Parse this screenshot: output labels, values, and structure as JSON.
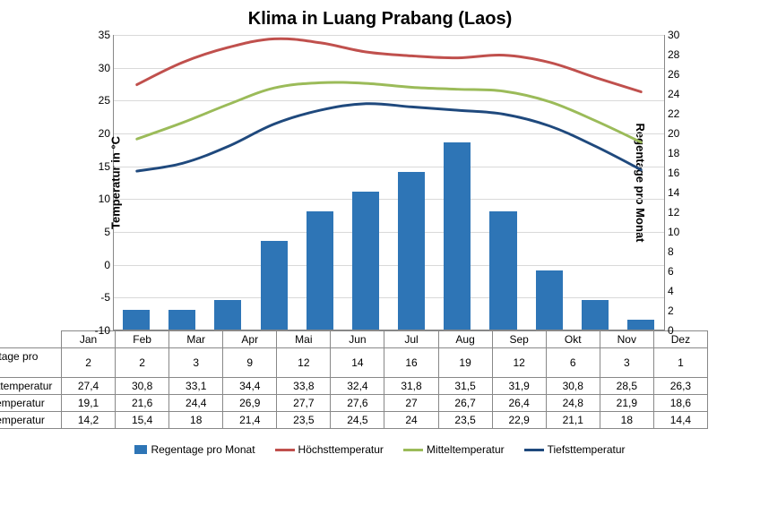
{
  "title": "Klima in Luang Prabang (Laos)",
  "y_left": {
    "label": "Temperatur in °C",
    "min": -10,
    "max": 35,
    "step": 5
  },
  "y_right": {
    "label": "Regentage pro Monat",
    "min": 0,
    "max": 30,
    "step": 2
  },
  "months": [
    "Jan",
    "Feb",
    "Mar",
    "Apr",
    "Mai",
    "Jun",
    "Jul",
    "Aug",
    "Sep",
    "Okt",
    "Nov",
    "Dez"
  ],
  "series": {
    "regentage": {
      "label": "Regentage pro Monat",
      "type": "bar",
      "axis": "right",
      "color": "#2e75b6",
      "values": [
        2,
        2,
        3,
        9,
        12,
        14,
        16,
        19,
        12,
        6,
        3,
        1
      ]
    },
    "hoechst": {
      "label": "Höchsttemperatur",
      "type": "line",
      "axis": "left",
      "color": "#c0504d",
      "width": 3,
      "values": [
        27.4,
        30.8,
        33.1,
        34.4,
        33.8,
        32.4,
        31.8,
        31.5,
        31.9,
        30.8,
        28.5,
        26.3
      ]
    },
    "mittel": {
      "label": "Mitteltemperatur",
      "type": "line",
      "axis": "left",
      "color": "#9bbb59",
      "width": 3,
      "values": [
        19.1,
        21.6,
        24.4,
        26.9,
        27.7,
        27.6,
        27,
        26.7,
        26.4,
        24.8,
        21.9,
        18.6
      ]
    },
    "tiefst": {
      "label": "Tiefsttemperatur",
      "type": "line",
      "axis": "left",
      "color": "#1f497d",
      "width": 3,
      "values": [
        14.2,
        15.4,
        18,
        21.4,
        23.5,
        24.5,
        24,
        23.5,
        22.9,
        21.1,
        18,
        14.4
      ]
    }
  },
  "table_rows": [
    "regentage",
    "hoechst",
    "mittel",
    "tiefst"
  ],
  "colors": {
    "background": "#ffffff",
    "grid": "#d9d9d9",
    "axis": "#888888",
    "text": "#000000"
  },
  "typography": {
    "title_fontsize": 20,
    "axis_label_fontsize": 13,
    "tick_fontsize": 12,
    "legend_fontsize": 12
  }
}
